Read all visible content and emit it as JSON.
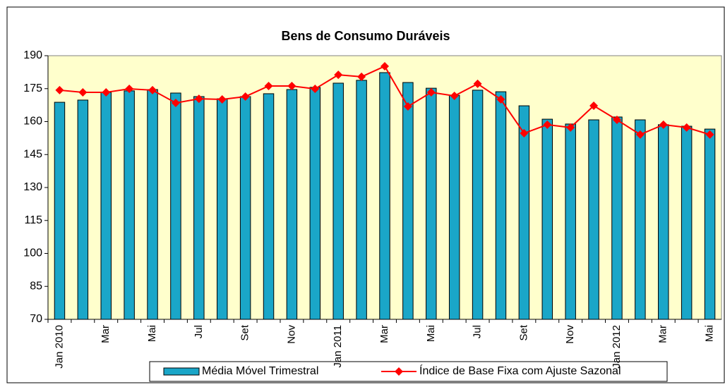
{
  "chart_data": {
    "type": "bar-line",
    "title": "Bens de Consumo Duráveis",
    "categories": [
      "Jan 2010",
      null,
      "Mar",
      null,
      "Mai",
      null,
      "Jul",
      null,
      "Set",
      null,
      "Nov",
      null,
      "Jan 2011",
      null,
      "Mar",
      null,
      "Mai",
      null,
      "Jul",
      null,
      "Set",
      null,
      "Nov",
      null,
      "Jan 2012",
      null,
      "Mar",
      null,
      "Mai"
    ],
    "series": [
      {
        "name": "Média Móvel Trimestral",
        "type": "bar",
        "color": "#1aa6c8",
        "values": [
          168.8,
          169.8,
          173.3,
          174.0,
          174.6,
          173.0,
          171.4,
          170.4,
          171.4,
          172.7,
          174.6,
          175.6,
          177.5,
          178.8,
          182.3,
          177.8,
          175.2,
          172.0,
          174.3,
          173.6,
          167.2,
          161.1,
          158.9,
          160.8,
          162.1,
          160.8,
          158.6,
          157.9,
          156.6
        ]
      },
      {
        "name": "Índice de Base Fixa com Ajuste Sazonal",
        "type": "line",
        "color": "#ff0000",
        "values": [
          174.3,
          173.3,
          173.3,
          174.9,
          174.3,
          168.5,
          170.4,
          170.1,
          171.4,
          176.2,
          176.2,
          174.9,
          181.3,
          180.4,
          185.2,
          166.9,
          173.3,
          171.7,
          177.2,
          170.1,
          154.7,
          158.6,
          157.3,
          167.2,
          160.8,
          154.1,
          158.6,
          157.3,
          154.1
        ]
      }
    ],
    "ylim": [
      70,
      190
    ],
    "yticks": [
      70,
      85,
      100,
      115,
      130,
      145,
      160,
      175,
      190
    ],
    "grid": false
  }
}
